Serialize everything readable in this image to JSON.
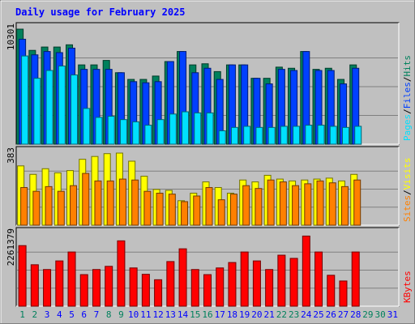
{
  "chart_data": {
    "type": "bar",
    "title": "Daily usage for February 2025",
    "categories": [
      "1",
      "2",
      "3",
      "4",
      "5",
      "6",
      "7",
      "8",
      "9",
      "10",
      "11",
      "12",
      "13",
      "14",
      "15",
      "16",
      "17",
      "18",
      "19",
      "20",
      "21",
      "22",
      "23",
      "24",
      "25",
      "26",
      "27",
      "28",
      "29",
      "30",
      "31"
    ],
    "weekend_days": [
      "1",
      "2",
      "8",
      "9",
      "15",
      "16",
      "22",
      "23",
      "29",
      "30"
    ],
    "panels": [
      {
        "name": "hits-files-pages",
        "y_max_label": "10301",
        "ylim": [
          0,
          10301
        ],
        "legend": [
          {
            "label": "Pages",
            "color": "#00E0FF"
          },
          {
            "label": "Files",
            "color": "#0040FF"
          },
          {
            "label": "Hits",
            "color": "#00805C"
          }
        ],
        "series": [
          {
            "name": "Hits",
            "color": "#00805C",
            "values": [
              10301,
              8400,
              8700,
              8700,
              8900,
              7100,
              7100,
              7500,
              6400,
              5800,
              5800,
              6100,
              7400,
              8300,
              7100,
              7200,
              6500,
              7100,
              7100,
              5900,
              5900,
              6900,
              6800,
              8300,
              6700,
              6800,
              5800,
              7100,
              0,
              0,
              0
            ]
          },
          {
            "name": "Files",
            "color": "#0040FF",
            "values": [
              9400,
              8000,
              8300,
              8200,
              8600,
              6700,
              6700,
              6700,
              6400,
              5600,
              5500,
              5600,
              7400,
              8300,
              6400,
              6800,
              5800,
              7100,
              7100,
              5900,
              5400,
              6700,
              6600,
              8300,
              6600,
              6600,
              5400,
              6800,
              0,
              0,
              0
            ]
          },
          {
            "name": "Pages",
            "color": "#00E0FF",
            "values": [
              7900,
              5900,
              6600,
              7000,
              6200,
              3200,
              2400,
              2500,
              2200,
              2000,
              1700,
              2200,
              2700,
              2900,
              2800,
              2800,
              1200,
              1500,
              1600,
              1500,
              1500,
              1600,
              1600,
              1700,
              1700,
              1600,
              1500,
              1600,
              0,
              0,
              0
            ]
          }
        ]
      },
      {
        "name": "visits-sites",
        "y_max_label": "383",
        "ylim": [
          0,
          383
        ],
        "legend": [
          {
            "label": "Sites",
            "color": "#FF8000"
          },
          {
            "label": "Visits",
            "color": "#FFFF00"
          }
        ],
        "series": [
          {
            "name": "Visits",
            "color": "#FFFF00",
            "values": [
              315,
              270,
              300,
              278,
              290,
              350,
              365,
              380,
              383,
              340,
              260,
              190,
              185,
              130,
              170,
              230,
              200,
              170,
              240,
              230,
              265,
              245,
              235,
              240,
              245,
              250,
              235,
              270,
              0,
              0,
              0
            ]
          },
          {
            "name": "Sites",
            "color": "#FF8000",
            "values": [
              200,
              180,
              205,
              180,
              210,
              275,
              235,
              235,
              245,
              240,
              180,
              170,
              165,
              125,
              155,
              200,
              135,
              165,
              210,
              195,
              240,
              230,
              210,
              220,
              235,
              225,
              205,
              240,
              0,
              0,
              0
            ]
          }
        ]
      },
      {
        "name": "kbytes",
        "y_max_label": "2261379",
        "ylim": [
          0,
          2261379
        ],
        "legend": [
          {
            "label": "KBytes",
            "color": "#FF0000"
          }
        ],
        "series": [
          {
            "name": "KBytes",
            "color": "#FF0000",
            "values": [
              1900000,
              1300000,
              1150000,
              1420000,
              1700000,
              990000,
              1150000,
              1250000,
              2050000,
              1200000,
              1000000,
              830000,
              1400000,
              1800000,
              1150000,
              990000,
              1200000,
              1370000,
              1700000,
              1420000,
              1150000,
              1600000,
              1500000,
              2200000,
              1700000,
              970000,
              790000,
              1700000,
              0,
              0,
              0
            ]
          }
        ]
      }
    ]
  },
  "colors": {
    "background": "#C0C0C0",
    "plot_background": "#C0C0C0",
    "title": "#0000FF",
    "weekday_label": "#0000FF",
    "weekend_label": "#00805C"
  }
}
